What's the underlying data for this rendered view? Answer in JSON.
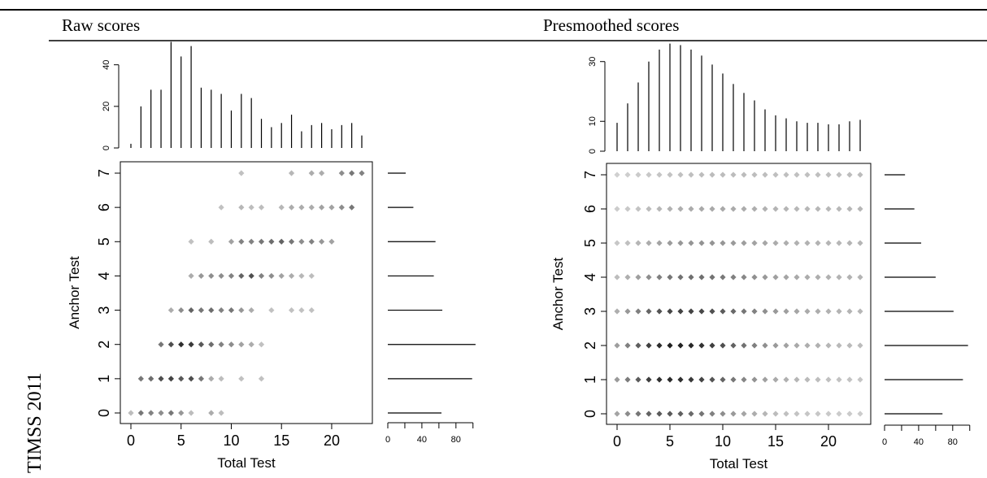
{
  "side_label": "TIMSS 2011",
  "panels": [
    {
      "title": "Raw scores",
      "chart_data": {
        "type": "scatter",
        "xlabel": "Total Test",
        "ylabel": "Anchor Test",
        "xlim": [
          0,
          23
        ],
        "ylim": [
          0,
          7
        ],
        "x_ticks": [
          0,
          5,
          10,
          15,
          20
        ],
        "y_ticks": [
          0,
          1,
          2,
          3,
          4,
          5,
          6,
          7
        ],
        "top_marginal": {
          "type": "bar",
          "x": [
            0,
            1,
            2,
            3,
            4,
            5,
            6,
            7,
            8,
            9,
            10,
            11,
            12,
            13,
            14,
            15,
            16,
            17,
            18,
            19,
            20,
            21,
            22,
            23
          ],
          "values": [
            2,
            20,
            28,
            28,
            51,
            44,
            49,
            29,
            28,
            26,
            18,
            26,
            24,
            14,
            10,
            12,
            16,
            8,
            11,
            12,
            9,
            11,
            12,
            6
          ],
          "y_ticks": [
            0,
            20,
            40
          ]
        },
        "right_marginal": {
          "type": "bar",
          "y": [
            0,
            1,
            2,
            3,
            4,
            5,
            6,
            7
          ],
          "values": [
            63,
            99,
            103,
            64,
            54,
            56,
            30,
            21
          ],
          "x_ticks": [
            0,
            40,
            80
          ]
        },
        "points": [
          {
            "x": 0,
            "y": 0,
            "shade": 0.22
          },
          {
            "x": 1,
            "y": 0,
            "shade": 0.55
          },
          {
            "x": 2,
            "y": 0,
            "shade": 0.5
          },
          {
            "x": 3,
            "y": 0,
            "shade": 0.45
          },
          {
            "x": 4,
            "y": 0,
            "shade": 0.55
          },
          {
            "x": 5,
            "y": 0,
            "shade": 0.4
          },
          {
            "x": 6,
            "y": 0,
            "shade": 0.22
          },
          {
            "x": 8,
            "y": 0,
            "shade": 0.3
          },
          {
            "x": 9,
            "y": 0,
            "shade": 0.22
          },
          {
            "x": 1,
            "y": 1,
            "shade": 0.55
          },
          {
            "x": 2,
            "y": 1,
            "shade": 0.6
          },
          {
            "x": 3,
            "y": 1,
            "shade": 0.75
          },
          {
            "x": 4,
            "y": 1,
            "shade": 0.8
          },
          {
            "x": 5,
            "y": 1,
            "shade": 0.7
          },
          {
            "x": 6,
            "y": 1,
            "shade": 0.75
          },
          {
            "x": 7,
            "y": 1,
            "shade": 0.55
          },
          {
            "x": 8,
            "y": 1,
            "shade": 0.3
          },
          {
            "x": 9,
            "y": 1,
            "shade": 0.22
          },
          {
            "x": 11,
            "y": 1,
            "shade": 0.2
          },
          {
            "x": 13,
            "y": 1,
            "shade": 0.2
          },
          {
            "x": 3,
            "y": 2,
            "shade": 0.55
          },
          {
            "x": 4,
            "y": 2,
            "shade": 0.75
          },
          {
            "x": 5,
            "y": 2,
            "shade": 0.9
          },
          {
            "x": 6,
            "y": 2,
            "shade": 0.85
          },
          {
            "x": 7,
            "y": 2,
            "shade": 0.7
          },
          {
            "x": 8,
            "y": 2,
            "shade": 0.6
          },
          {
            "x": 9,
            "y": 2,
            "shade": 0.5
          },
          {
            "x": 10,
            "y": 2,
            "shade": 0.45
          },
          {
            "x": 11,
            "y": 2,
            "shade": 0.35
          },
          {
            "x": 12,
            "y": 2,
            "shade": 0.3
          },
          {
            "x": 13,
            "y": 2,
            "shade": 0.2
          },
          {
            "x": 4,
            "y": 3,
            "shade": 0.3
          },
          {
            "x": 5,
            "y": 3,
            "shade": 0.45
          },
          {
            "x": 6,
            "y": 3,
            "shade": 0.65
          },
          {
            "x": 7,
            "y": 3,
            "shade": 0.55
          },
          {
            "x": 8,
            "y": 3,
            "shade": 0.6
          },
          {
            "x": 9,
            "y": 3,
            "shade": 0.5
          },
          {
            "x": 10,
            "y": 3,
            "shade": 0.55
          },
          {
            "x": 11,
            "y": 3,
            "shade": 0.4
          },
          {
            "x": 12,
            "y": 3,
            "shade": 0.3
          },
          {
            "x": 14,
            "y": 3,
            "shade": 0.2
          },
          {
            "x": 16,
            "y": 3,
            "shade": 0.2
          },
          {
            "x": 17,
            "y": 3,
            "shade": 0.2
          },
          {
            "x": 18,
            "y": 3,
            "shade": 0.2
          },
          {
            "x": 6,
            "y": 4,
            "shade": 0.3
          },
          {
            "x": 7,
            "y": 4,
            "shade": 0.4
          },
          {
            "x": 8,
            "y": 4,
            "shade": 0.45
          },
          {
            "x": 9,
            "y": 4,
            "shade": 0.45
          },
          {
            "x": 10,
            "y": 4,
            "shade": 0.5
          },
          {
            "x": 11,
            "y": 4,
            "shade": 0.65
          },
          {
            "x": 12,
            "y": 4,
            "shade": 0.75
          },
          {
            "x": 13,
            "y": 4,
            "shade": 0.5
          },
          {
            "x": 14,
            "y": 4,
            "shade": 0.45
          },
          {
            "x": 15,
            "y": 4,
            "shade": 0.35
          },
          {
            "x": 16,
            "y": 4,
            "shade": 0.3
          },
          {
            "x": 17,
            "y": 4,
            "shade": 0.25
          },
          {
            "x": 18,
            "y": 4,
            "shade": 0.22
          },
          {
            "x": 6,
            "y": 5,
            "shade": 0.2
          },
          {
            "x": 8,
            "y": 5,
            "shade": 0.22
          },
          {
            "x": 10,
            "y": 5,
            "shade": 0.35
          },
          {
            "x": 11,
            "y": 5,
            "shade": 0.5
          },
          {
            "x": 12,
            "y": 5,
            "shade": 0.5
          },
          {
            "x": 13,
            "y": 5,
            "shade": 0.55
          },
          {
            "x": 14,
            "y": 5,
            "shade": 0.6
          },
          {
            "x": 15,
            "y": 5,
            "shade": 0.65
          },
          {
            "x": 16,
            "y": 5,
            "shade": 0.55
          },
          {
            "x": 17,
            "y": 5,
            "shade": 0.45
          },
          {
            "x": 18,
            "y": 5,
            "shade": 0.5
          },
          {
            "x": 19,
            "y": 5,
            "shade": 0.4
          },
          {
            "x": 20,
            "y": 5,
            "shade": 0.35
          },
          {
            "x": 9,
            "y": 6,
            "shade": 0.2
          },
          {
            "x": 11,
            "y": 6,
            "shade": 0.25
          },
          {
            "x": 12,
            "y": 6,
            "shade": 0.22
          },
          {
            "x": 13,
            "y": 6,
            "shade": 0.22
          },
          {
            "x": 15,
            "y": 6,
            "shade": 0.25
          },
          {
            "x": 16,
            "y": 6,
            "shade": 0.3
          },
          {
            "x": 17,
            "y": 6,
            "shade": 0.3
          },
          {
            "x": 18,
            "y": 6,
            "shade": 0.3
          },
          {
            "x": 19,
            "y": 6,
            "shade": 0.35
          },
          {
            "x": 20,
            "y": 6,
            "shade": 0.35
          },
          {
            "x": 21,
            "y": 6,
            "shade": 0.45
          },
          {
            "x": 22,
            "y": 6,
            "shade": 0.55
          },
          {
            "x": 11,
            "y": 7,
            "shade": 0.2
          },
          {
            "x": 16,
            "y": 7,
            "shade": 0.25
          },
          {
            "x": 18,
            "y": 7,
            "shade": 0.3
          },
          {
            "x": 19,
            "y": 7,
            "shade": 0.3
          },
          {
            "x": 21,
            "y": 7,
            "shade": 0.45
          },
          {
            "x": 22,
            "y": 7,
            "shade": 0.55
          },
          {
            "x": 23,
            "y": 7,
            "shade": 0.5
          }
        ]
      }
    },
    {
      "title": "Presmoothed scores",
      "chart_data": {
        "type": "scatter",
        "xlabel": "Total Test",
        "ylabel": "Anchor Test",
        "xlim": [
          0,
          23
        ],
        "ylim": [
          0,
          7
        ],
        "x_ticks": [
          0,
          5,
          10,
          15,
          20
        ],
        "y_ticks": [
          0,
          1,
          2,
          3,
          4,
          5,
          6,
          7
        ],
        "top_marginal": {
          "type": "bar",
          "x": [
            0,
            1,
            2,
            3,
            4,
            5,
            6,
            7,
            8,
            9,
            10,
            11,
            12,
            13,
            14,
            15,
            16,
            17,
            18,
            19,
            20,
            21,
            22,
            23
          ],
          "values": [
            9.5,
            16,
            23,
            30,
            34,
            36,
            35.5,
            34,
            32,
            29,
            26,
            22.5,
            19.5,
            17,
            14,
            12,
            11,
            10,
            9.5,
            9.5,
            9,
            9,
            10,
            10.5
          ],
          "y_ticks": [
            0,
            10,
            30
          ]
        },
        "right_marginal": {
          "type": "bar",
          "y": [
            0,
            1,
            2,
            3,
            4,
            5,
            6,
            7
          ],
          "values": [
            68,
            92,
            98,
            81,
            60,
            43,
            35,
            24
          ],
          "x_ticks": [
            0,
            40,
            80
          ]
        },
        "grid_points": {
          "x_range": [
            0,
            23
          ],
          "y_range": [
            0,
            7
          ],
          "shade_model": "smoothed bivariate density",
          "peak": {
            "x": 5,
            "y": 2
          }
        }
      }
    }
  ]
}
